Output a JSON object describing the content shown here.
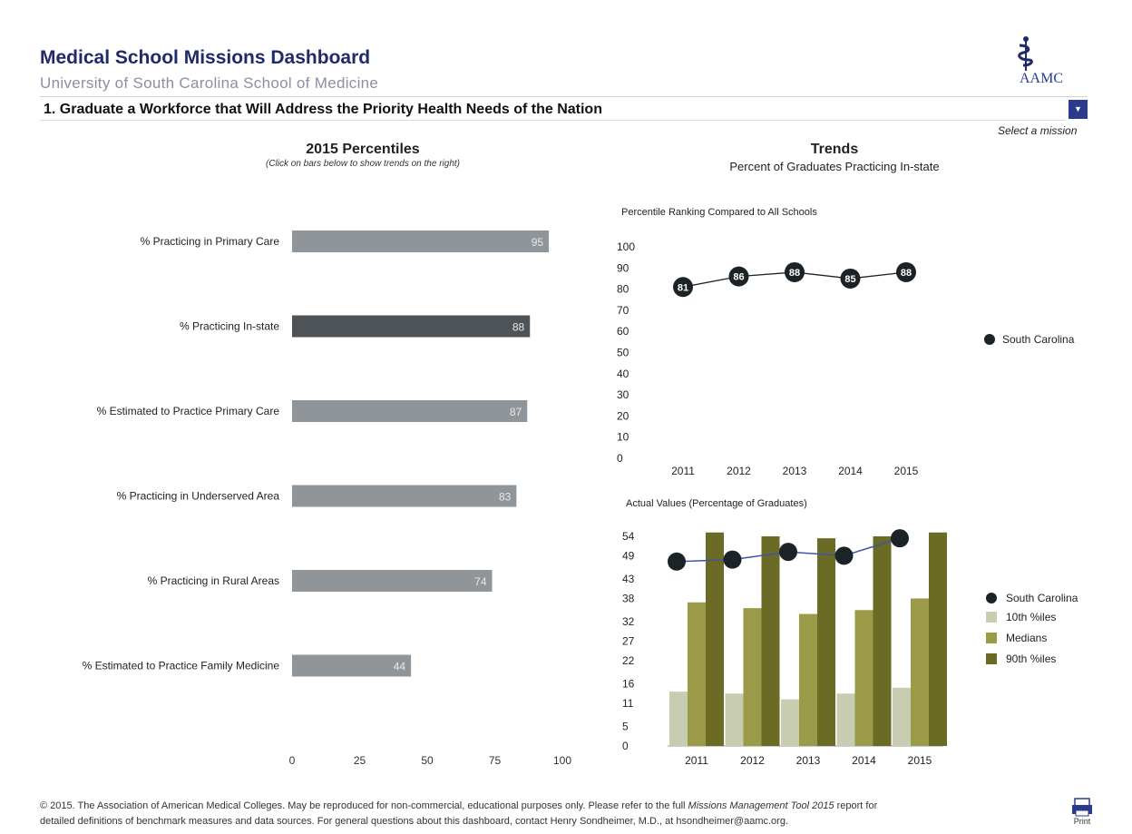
{
  "header": {
    "title": "Medical School Missions Dashboard",
    "subtitle": "University of South Carolina School of Medicine",
    "logo_text": "AAMC",
    "mission": "1. Graduate a Workforce that Will Address the Priority Health Needs of the Nation",
    "select_label": "Select a mission"
  },
  "left_panel": {
    "heading": "2015 Percentiles",
    "subheading": "(Click on bars below to show trends on the right)"
  },
  "right_panel": {
    "heading": "Trends",
    "subheading": "Percent of Graduates Practicing In-state"
  },
  "chart_data": [
    {
      "type": "bar",
      "orientation": "horizontal",
      "title": "2015 Percentiles",
      "categories": [
        "% Practicing in Primary Care",
        "% Practicing In-state",
        "% Estimated to Practice Primary Care",
        "% Practicing in Underserved Area",
        "% Practicing in Rural Areas",
        "% Estimated to Practice Family Medicine"
      ],
      "values": [
        95,
        88,
        87,
        83,
        74,
        44
      ],
      "xlim": [
        0,
        100
      ],
      "xticks": [
        0,
        25,
        50,
        75,
        100
      ],
      "selected_category": "% Practicing In-state",
      "colors": {
        "bar": "#8f9599",
        "selected": "#4e5357"
      }
    },
    {
      "type": "line",
      "title": "Percentile Ranking Compared to All Schools",
      "x": [
        "2011",
        "2012",
        "2013",
        "2014",
        "2015"
      ],
      "series": [
        {
          "name": "South Carolina",
          "values": [
            81,
            86,
            88,
            85,
            88
          ]
        }
      ],
      "ylim": [
        0,
        100
      ],
      "yticks": [
        0,
        10,
        20,
        30,
        40,
        50,
        60,
        70,
        80,
        90,
        100
      ],
      "legend": "right",
      "colors": {
        "marker": "#1c2326"
      }
    },
    {
      "type": "bar",
      "title": "Actual Values (Percentage of Graduates)",
      "x": [
        "2011",
        "2012",
        "2013",
        "2014",
        "2015"
      ],
      "series": [
        {
          "name": "10th %iles",
          "values": [
            14,
            13.5,
            12,
            13.5,
            15
          ]
        },
        {
          "name": "Medians",
          "values": [
            37,
            35.5,
            34,
            35,
            38
          ]
        },
        {
          "name": "90th %iles",
          "values": [
            55,
            54,
            53.5,
            54,
            55
          ]
        }
      ],
      "overlay": {
        "name": "South Carolina",
        "type": "line",
        "values": [
          47.5,
          48,
          50,
          49,
          53.5
        ]
      },
      "ylim": [
        0,
        54
      ],
      "yticks": [
        0,
        5,
        11,
        16,
        22,
        27,
        32,
        38,
        43,
        49,
        54
      ],
      "legend_order": [
        "South Carolina",
        "10th %iles",
        "Medians",
        "90th %iles"
      ],
      "legend": "right",
      "colors": {
        "10th %iles": "#c8ccb0",
        "Medians": "#9a9a48",
        "90th %iles": "#6b6b26",
        "South Carolina": "#1c2326",
        "line": "#3f55a8"
      }
    }
  ],
  "footer": {
    "line1": "© 2015. The Association of American Medical Colleges. May be reproduced for non-commercial, educational purposes only.  Please refer to the full ",
    "line1_italic": "Missions Management Tool 2015",
    "line1_end": " report for",
    "line2": "detailed definitions of benchmark measures and data sources. For general questions about this dashboard, contact Henry Sondheimer, M.D., at hsondheimer@aamc.org.",
    "print_label": "Print"
  }
}
